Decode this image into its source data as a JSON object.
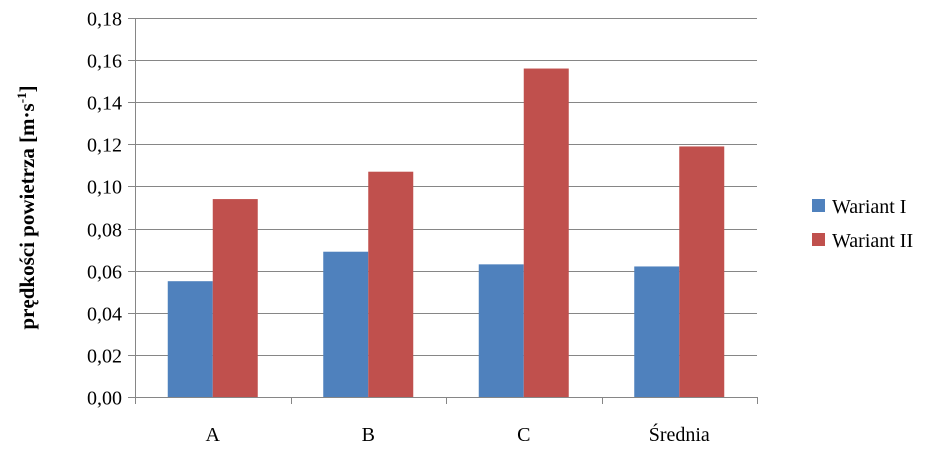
{
  "chart_data": {
    "type": "bar",
    "categories": [
      "A",
      "B",
      "C",
      "Średnia"
    ],
    "series": [
      {
        "name": "Wariant I",
        "color": "#4F81BD",
        "values": [
          0.055,
          0.069,
          0.063,
          0.062
        ]
      },
      {
        "name": "Wariant II",
        "color": "#C0504D",
        "values": [
          0.094,
          0.107,
          0.156,
          0.119
        ]
      }
    ],
    "ylabel": "prędkości powietrza [m·s",
    "ylabel_superscript": "-1",
    "ylabel_suffix": "]",
    "xlabel": "",
    "ylim": [
      0,
      0.18
    ],
    "yticks": [
      "0,00",
      "0,02",
      "0,04",
      "0,06",
      "0,08",
      "0,10",
      "0,12",
      "0,14",
      "0,16",
      "0,18"
    ],
    "grid": true,
    "legend_position": "right"
  }
}
